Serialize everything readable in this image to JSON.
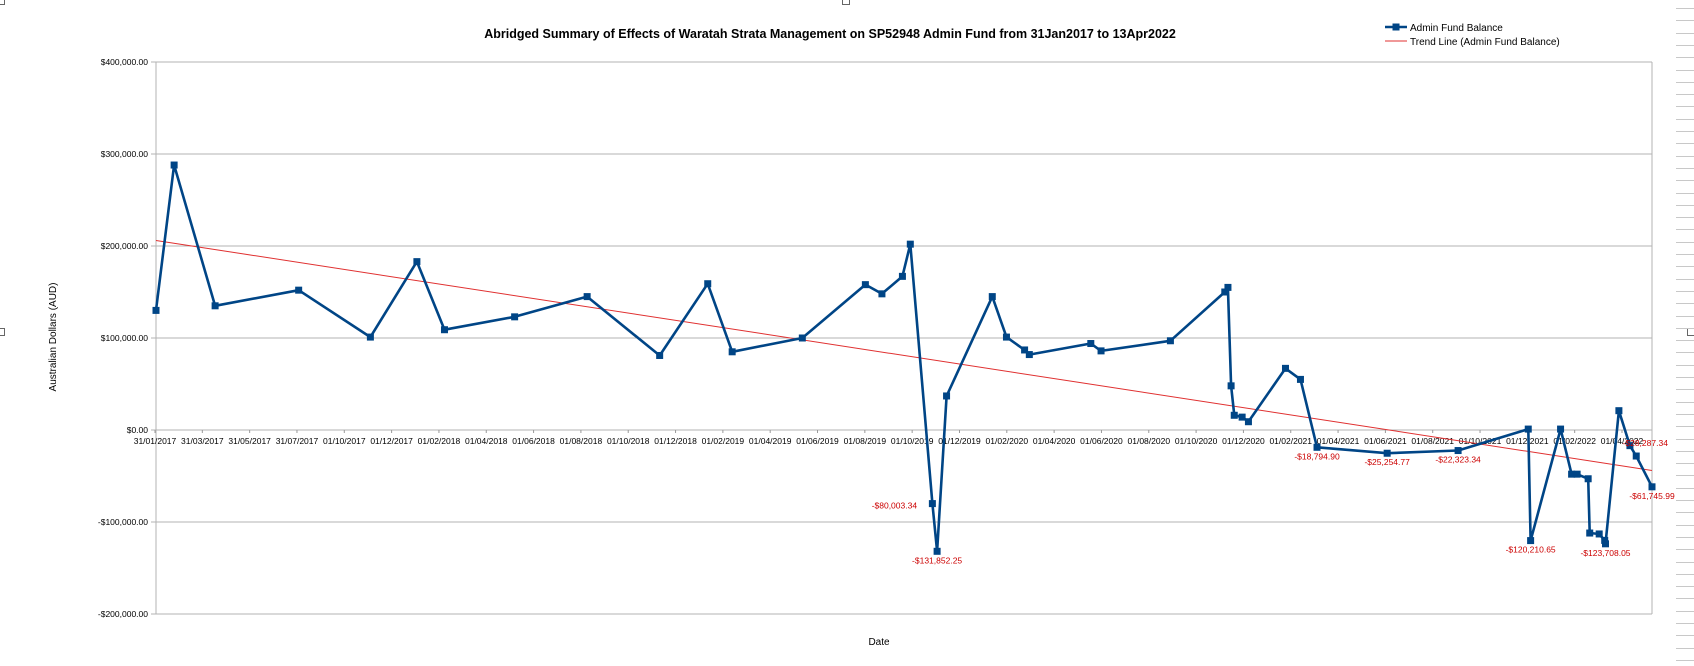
{
  "chart_data": {
    "type": "line",
    "title": "Abridged Summary of Effects of Waratah Strata Management on SP52948 Admin Fund from 31Jan2017 to 13Apr2022",
    "xlabel": "Date",
    "ylabel": "Australian Dollars (AUD)",
    "ylim": [
      -200000,
      400000
    ],
    "y_ticks": [
      -200000,
      -100000,
      0,
      100000,
      200000,
      300000,
      400000
    ],
    "y_tick_labels": [
      "-$200,000.00",
      "-$100,000.00",
      "$0.00",
      "$100,000.00",
      "$200,000.00",
      "$300,000.00",
      "$400,000.00"
    ],
    "x_range": [
      "2017-01-31",
      "2022-04-13"
    ],
    "x_tick_labels": [
      "31/01/2017",
      "31/03/2017",
      "31/05/2017",
      "31/07/2017",
      "01/10/2017",
      "01/12/2017",
      "01/02/2018",
      "01/04/2018",
      "01/06/2018",
      "01/08/2018",
      "01/10/2018",
      "01/12/2018",
      "01/02/2019",
      "01/04/2019",
      "01/06/2019",
      "01/08/2019",
      "01/10/2019",
      "01/12/2019",
      "01/02/2020",
      "01/04/2020",
      "01/06/2020",
      "01/08/2020",
      "01/10/2020",
      "01/12/2020",
      "01/02/2021",
      "01/04/2021",
      "01/06/2021",
      "01/08/2021",
      "01/10/2021",
      "01/12/2021",
      "01/02/2022",
      "01/04/2022"
    ],
    "grid": true,
    "legend_position": "top-right",
    "colors": {
      "series": "#004586",
      "trend": "#e03030",
      "labels": "#cc0000",
      "grid": "#b3b3b3"
    },
    "series": [
      {
        "name": "Admin Fund Balance",
        "x": [
          "2017-01-31",
          "2017-02-23",
          "2017-04-16",
          "2017-07-31",
          "2017-10-30",
          "2017-12-28",
          "2018-02-01",
          "2018-05-01",
          "2018-08-01",
          "2018-11-01",
          "2019-01-01",
          "2019-02-01",
          "2019-05-01",
          "2019-07-20",
          "2019-08-10",
          "2019-09-05",
          "2019-09-15",
          "2019-10-13",
          "2019-10-19",
          "2019-10-31",
          "2019-12-28",
          "2020-01-15",
          "2020-02-07",
          "2020-02-13",
          "2020-05-01",
          "2020-05-14",
          "2020-08-10",
          "2020-10-18",
          "2020-10-22",
          "2020-10-26",
          "2020-10-30",
          "2020-11-09",
          "2020-11-17",
          "2021-01-03",
          "2021-01-22",
          "2021-02-12",
          "2021-05-12",
          "2021-08-10",
          "2021-11-07",
          "2021-11-10",
          "2021-12-18",
          "2022-01-01",
          "2022-01-08",
          "2022-01-22",
          "2022-01-24",
          "2022-02-05",
          "2022-02-12",
          "2022-02-13",
          "2022-03-02",
          "2022-03-16",
          "2022-03-24",
          "2022-04-13"
        ],
        "values": [
          130000,
          288000,
          135000,
          152000,
          101000,
          183000,
          109000,
          123000,
          145000,
          81000,
          159000,
          85000,
          100000,
          158000,
          148000,
          167000,
          202000,
          -80003.34,
          -131852.25,
          37000,
          145000,
          101000,
          87000,
          82000,
          94000,
          86000,
          97000,
          150000,
          155000,
          48000,
          16000,
          14000,
          9000,
          67000,
          55000,
          -18794.9,
          -25254.77,
          -22323.34,
          1000,
          -120210.65,
          1000,
          -48000,
          -48000,
          -53000,
          -112000,
          -113000,
          -120000,
          -123708.05,
          21000,
          -17000,
          -28287.34,
          -61745.99
        ]
      },
      {
        "name": "Trend Line (Admin Fund Balance)",
        "x": [
          "2017-01-31",
          "2022-04-13"
        ],
        "values": [
          206000,
          -44000
        ]
      }
    ],
    "data_labels": [
      {
        "x": "2019-10-13",
        "value": -80003.34,
        "text": "-$80,003.34"
      },
      {
        "x": "2019-10-19",
        "value": -131852.25,
        "text": "-$131,852.25"
      },
      {
        "x": "2021-02-12",
        "value": -18794.9,
        "text": "-$18,794.90"
      },
      {
        "x": "2021-05-12",
        "value": -25254.77,
        "text": "-$25,254.77"
      },
      {
        "x": "2021-08-10",
        "value": -22323.34,
        "text": "-$22,323.34"
      },
      {
        "x": "2021-11-10",
        "value": -120210.65,
        "text": "-$120,210.65"
      },
      {
        "x": "2022-02-13",
        "value": -123708.05,
        "text": "-$123,708.05"
      },
      {
        "x": "2022-03-24",
        "value": -28287.34,
        "text": "-$28,287.34"
      },
      {
        "x": "2022-04-13",
        "value": -61745.99,
        "text": "-$61,745.99"
      }
    ]
  }
}
